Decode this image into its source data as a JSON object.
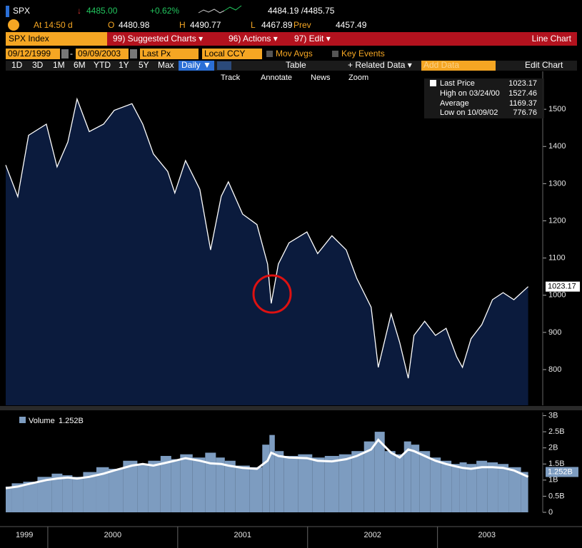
{
  "header": {
    "ticker": "SPX",
    "last": "4485.00",
    "change": "+0.62%",
    "bid_ask": "4484.19 /4485.75",
    "time": "At 14:50 d",
    "open_label": "O",
    "open": "4480.98",
    "high_label": "H",
    "high": "4490.77",
    "low_label": "L",
    "low": "4467.89",
    "prev_label": "Prev",
    "prev": "4457.49"
  },
  "menu": {
    "security": "SPX Index",
    "items": [
      "99) Suggested Charts ▾",
      "96) Actions ▾",
      "97) Edit ▾"
    ],
    "chart_kind": "Line Chart"
  },
  "controls": {
    "start": "09/12/1999",
    "end": "09/09/2003",
    "field": "Last Px",
    "currency": "Local CCY",
    "toggles": [
      "Mov Avgs",
      "Key Events"
    ]
  },
  "periods": {
    "items": [
      "1D",
      "3D",
      "1M",
      "6M",
      "YTD",
      "1Y",
      "5Y",
      "Max"
    ],
    "frequency": "Daily ▼",
    "table": "Table",
    "related": "+ Related Data ▾",
    "add_data": "Add Data",
    "edit_chart": "Edit Chart"
  },
  "tools": [
    "Track",
    "Annotate",
    "News",
    "Zoom"
  ],
  "chart_data": [
    {
      "type": "line",
      "xlim": [
        1999.676,
        2003.7
      ],
      "ylim": [
        704,
        1602
      ],
      "yticks": [
        800,
        900,
        1000,
        1100,
        1200,
        1300,
        1400,
        1500
      ],
      "x": [
        1999.676,
        1999.769,
        1999.852,
        1999.989,
        2000.071,
        2000.154,
        2000.225,
        2000.319,
        2000.429,
        2000.511,
        2000.648,
        2000.731,
        2000.813,
        2000.923,
        2000.978,
        2001.06,
        2001.17,
        2001.253,
        2001.335,
        2001.39,
        2001.5,
        2001.61,
        2001.692,
        2001.72,
        2001.775,
        2001.857,
        2001.995,
        2002.077,
        2002.187,
        2002.297,
        2002.379,
        2002.489,
        2002.544,
        2002.643,
        2002.709,
        2002.775,
        2002.819,
        2002.901,
        2002.984,
        2003.066,
        2003.148,
        2003.192,
        2003.258,
        2003.341,
        2003.423,
        2003.505,
        2003.588,
        2003.698
      ],
      "series": [
        {
          "name": "Last Price",
          "color": "#ffffff",
          "fill": "#0b1b3d",
          "values": [
            1350,
            1265,
            1430,
            1460,
            1345,
            1412,
            1527.46,
            1440,
            1460,
            1497,
            1515,
            1460,
            1380,
            1333,
            1275,
            1362,
            1285,
            1122,
            1266,
            1305,
            1218,
            1190,
            1084,
            978,
            1084,
            1141,
            1170,
            1112,
            1160,
            1122,
            1045,
            968,
            806,
            950,
            873,
            776.76,
            892,
            930,
            892,
            911,
            834,
            806,
            883,
            921,
            988,
            1007,
            988,
            1023.17
          ]
        }
      ],
      "legend": [
        {
          "label": "High on 03/24/00",
          "value": 1527.46
        },
        {
          "label": "Average",
          "value": 1169.37
        },
        {
          "label": "Low on 10/09/02",
          "value": 776.76
        }
      ]
    },
    {
      "type": "bar",
      "xlim": [
        1999.676,
        2003.7
      ],
      "ylim": [
        0,
        3.1
      ],
      "yticks": [
        0,
        {
          "value": 0.5,
          "label": "0.5B"
        },
        {
          "value": 1,
          "label": "1B"
        },
        {
          "value": 1.5,
          "label": "1.5B"
        },
        {
          "value": 2,
          "label": "2B"
        },
        {
          "value": 2.5,
          "label": "2.5B"
        },
        {
          "value": 3,
          "label": "3B"
        }
      ],
      "x": [
        1999.676,
        1999.769,
        1999.852,
        1999.989,
        2000.071,
        2000.154,
        2000.225,
        2000.319,
        2000.429,
        2000.511,
        2000.648,
        2000.731,
        2000.813,
        2000.923,
        2000.978,
        2001.06,
        2001.17,
        2001.253,
        2001.335,
        2001.39,
        2001.5,
        2001.61,
        2001.692,
        2001.72,
        2001.775,
        2001.857,
        2001.995,
        2002.077,
        2002.187,
        2002.297,
        2002.379,
        2002.489,
        2002.544,
        2002.643,
        2002.709,
        2002.775,
        2002.819,
        2002.901,
        2002.984,
        2003.066,
        2003.148,
        2003.192,
        2003.258,
        2003.341,
        2003.423,
        2003.505,
        2003.588,
        2003.698
      ],
      "last_label": "1.252B",
      "series": [
        {
          "name": "Volume",
          "color": "#7d9cc0",
          "values": [
            0.8,
            0.9,
            0.95,
            1.1,
            1.2,
            1.15,
            1.1,
            1.25,
            1.4,
            1.35,
            1.6,
            1.5,
            1.6,
            1.75,
            1.65,
            1.8,
            1.7,
            1.85,
            1.7,
            1.6,
            1.45,
            1.4,
            2.1,
            2.4,
            1.9,
            1.75,
            1.8,
            1.7,
            1.75,
            1.8,
            1.9,
            2.2,
            2.5,
            1.9,
            1.8,
            2.2,
            2.1,
            1.9,
            1.7,
            1.6,
            1.5,
            1.55,
            1.5,
            1.6,
            1.55,
            1.5,
            1.4,
            1.252
          ]
        },
        {
          "type": "line",
          "color": "#ffffff",
          "values": [
            0.75,
            0.8,
            0.88,
            1.0,
            1.05,
            1.08,
            1.05,
            1.1,
            1.2,
            1.3,
            1.45,
            1.5,
            1.45,
            1.55,
            1.6,
            1.68,
            1.6,
            1.52,
            1.5,
            1.45,
            1.38,
            1.35,
            1.6,
            1.85,
            1.75,
            1.7,
            1.68,
            1.6,
            1.58,
            1.65,
            1.75,
            1.95,
            2.25,
            1.85,
            1.7,
            1.95,
            1.9,
            1.75,
            1.6,
            1.5,
            1.42,
            1.38,
            1.35,
            1.4,
            1.4,
            1.38,
            1.3,
            1.1
          ]
        }
      ],
      "xticks": [
        {
          "value": 1999.82,
          "label": "1999"
        },
        {
          "value": 2000.5,
          "label": "2000"
        },
        {
          "value": 2001.5,
          "label": "2001"
        },
        {
          "value": 2002.5,
          "label": "2002"
        },
        {
          "value": 2003.38,
          "label": "2003"
        }
      ],
      "year_starts": [
        2000,
        2001,
        2002,
        2003
      ]
    }
  ]
}
